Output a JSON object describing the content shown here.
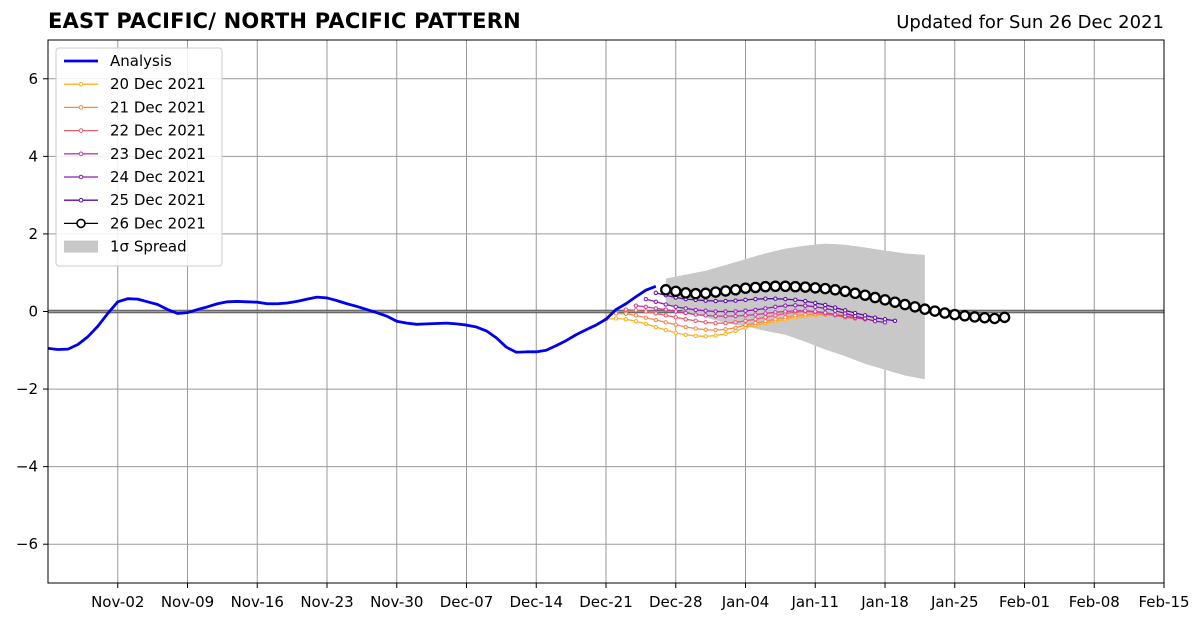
{
  "header": {
    "title": "EAST PACIFIC/ NORTH PACIFIC PATTERN",
    "updated": "Updated for Sun 26 Dec 2021"
  },
  "chart_data": {
    "type": "line",
    "xlim": [
      "2021-10-26",
      "2022-02-15"
    ],
    "ylim": [
      -7,
      7
    ],
    "grid": true,
    "legend_position": "top-left",
    "x_ticks": [
      "2021-11-02",
      "2021-11-09",
      "2021-11-16",
      "2021-11-23",
      "2021-11-30",
      "2021-12-07",
      "2021-12-14",
      "2021-12-21",
      "2021-12-28",
      "2022-01-04",
      "2022-01-11",
      "2022-01-18",
      "2022-01-25",
      "2022-02-01",
      "2022-02-08",
      "2022-02-15"
    ],
    "x_tick_labels": [
      "Nov-02",
      "Nov-09",
      "Nov-16",
      "Nov-23",
      "Nov-30",
      "Dec-07",
      "Dec-14",
      "Dec-21",
      "Dec-28",
      "Jan-04",
      "Jan-11",
      "Jan-18",
      "Jan-25",
      "Feb-01",
      "Feb-08",
      "Feb-15"
    ],
    "y_ticks": [
      -6,
      -4,
      -2,
      0,
      2,
      4,
      6
    ],
    "y_tick_labels": [
      "−6",
      "−4",
      "−2",
      "0",
      "2",
      "4",
      "6"
    ],
    "analysis": {
      "name": "Analysis",
      "color": "#0000ee",
      "start": "2021-10-26",
      "values": [
        -0.95,
        -0.98,
        -0.97,
        -0.85,
        -0.65,
        -0.38,
        -0.05,
        0.25,
        0.33,
        0.32,
        0.25,
        0.18,
        0.05,
        -0.05,
        -0.03,
        0.05,
        0.12,
        0.2,
        0.25,
        0.26,
        0.25,
        0.24,
        0.2,
        0.2,
        0.22,
        0.26,
        0.32,
        0.37,
        0.35,
        0.28,
        0.2,
        0.13,
        0.05,
        -0.03,
        -0.12,
        -0.25,
        -0.3,
        -0.33,
        -0.32,
        -0.31,
        -0.3,
        -0.32,
        -0.35,
        -0.4,
        -0.5,
        -0.68,
        -0.92,
        -1.05,
        -1.04,
        -1.04,
        -1.0,
        -0.88,
        -0.75,
        -0.6,
        -0.47,
        -0.35,
        -0.2,
        0.05,
        0.2,
        0.38,
        0.55,
        0.65
      ]
    },
    "spread": {
      "name": "1σ Spread",
      "color": "#c8c8c8",
      "start": "2021-12-27",
      "upper": [
        0.85,
        0.95,
        1.05,
        1.2,
        1.35,
        1.5,
        1.62,
        1.7,
        1.75,
        1.72,
        1.65,
        1.57,
        1.5,
        1.46
      ],
      "lower": [
        0.2,
        0.0,
        -0.15,
        -0.3,
        -0.38,
        -0.5,
        -0.6,
        -0.78,
        -0.98,
        -1.15,
        -1.35,
        -1.5,
        -1.65,
        -1.75
      ]
    },
    "series": [
      {
        "name": "20 Dec 2021",
        "color": "#ffb020",
        "start": "2021-12-21",
        "values": [
          -0.2,
          -0.18,
          -0.2,
          -0.25,
          -0.32,
          -0.4,
          -0.48,
          -0.55,
          -0.6,
          -0.63,
          -0.64,
          -0.62,
          -0.58,
          -0.5,
          -0.42,
          -0.35,
          -0.3,
          -0.25,
          -0.2,
          -0.15,
          -0.12,
          -0.1,
          -0.08,
          -0.08,
          -0.1,
          -0.12
        ]
      },
      {
        "name": "21 Dec 2021",
        "color": "#f58a48",
        "start": "2021-12-22",
        "values": [
          -0.05,
          -0.06,
          -0.1,
          -0.16,
          -0.22,
          -0.28,
          -0.34,
          -0.4,
          -0.44,
          -0.47,
          -0.48,
          -0.46,
          -0.42,
          -0.35,
          -0.3,
          -0.25,
          -0.2,
          -0.15,
          -0.1,
          -0.08,
          -0.07,
          -0.08,
          -0.1,
          -0.13,
          -0.15
        ]
      },
      {
        "name": "22 Dec 2021",
        "color": "#e85d70",
        "start": "2021-12-23",
        "values": [
          0.05,
          0.03,
          0.0,
          -0.05,
          -0.1,
          -0.15,
          -0.2,
          -0.24,
          -0.28,
          -0.3,
          -0.3,
          -0.28,
          -0.24,
          -0.2,
          -0.15,
          -0.1,
          -0.05,
          -0.02,
          0.0,
          -0.02,
          -0.05,
          -0.1,
          -0.15,
          -0.18
        ]
      },
      {
        "name": "23 Dec 2021",
        "color": "#c83a9a",
        "start": "2021-12-24",
        "values": [
          0.15,
          0.12,
          0.08,
          0.05,
          0.0,
          -0.04,
          -0.08,
          -0.1,
          -0.12,
          -0.12,
          -0.12,
          -0.1,
          -0.08,
          -0.05,
          -0.02,
          0.0,
          0.02,
          0.02,
          0.0,
          -0.03,
          -0.08,
          -0.12,
          -0.16,
          -0.2
        ]
      },
      {
        "name": "24 Dec 2021",
        "color": "#8a1ab8",
        "start": "2021-12-25",
        "values": [
          0.32,
          0.25,
          0.18,
          0.12,
          0.08,
          0.04,
          0.02,
          0.0,
          0.0,
          0.0,
          0.02,
          0.04,
          0.08,
          0.12,
          0.15,
          0.16,
          0.15,
          0.12,
          0.08,
          0.02,
          -0.05,
          -0.12,
          -0.18,
          -0.25,
          -0.28
        ]
      },
      {
        "name": "25 Dec 2021",
        "color": "#5a0aa0",
        "start": "2021-12-26",
        "values": [
          0.48,
          0.42,
          0.36,
          0.32,
          0.3,
          0.28,
          0.27,
          0.27,
          0.28,
          0.3,
          0.32,
          0.33,
          0.33,
          0.32,
          0.3,
          0.27,
          0.22,
          0.17,
          0.1,
          0.03,
          -0.04,
          -0.1,
          -0.16,
          -0.2,
          -0.24
        ]
      },
      {
        "name": "26 Dec 2021",
        "color": "#000000",
        "start": "2021-12-27",
        "open_markers": true,
        "values": [
          0.56,
          0.52,
          0.48,
          0.46,
          0.47,
          0.5,
          0.53,
          0.56,
          0.6,
          0.62,
          0.64,
          0.65,
          0.65,
          0.64,
          0.63,
          0.61,
          0.59,
          0.56,
          0.52,
          0.47,
          0.42,
          0.36,
          0.3,
          0.24,
          0.18,
          0.12,
          0.06,
          0.01,
          -0.04,
          -0.08,
          -0.11,
          -0.14,
          -0.16,
          -0.18,
          -0.15
        ]
      }
    ]
  }
}
